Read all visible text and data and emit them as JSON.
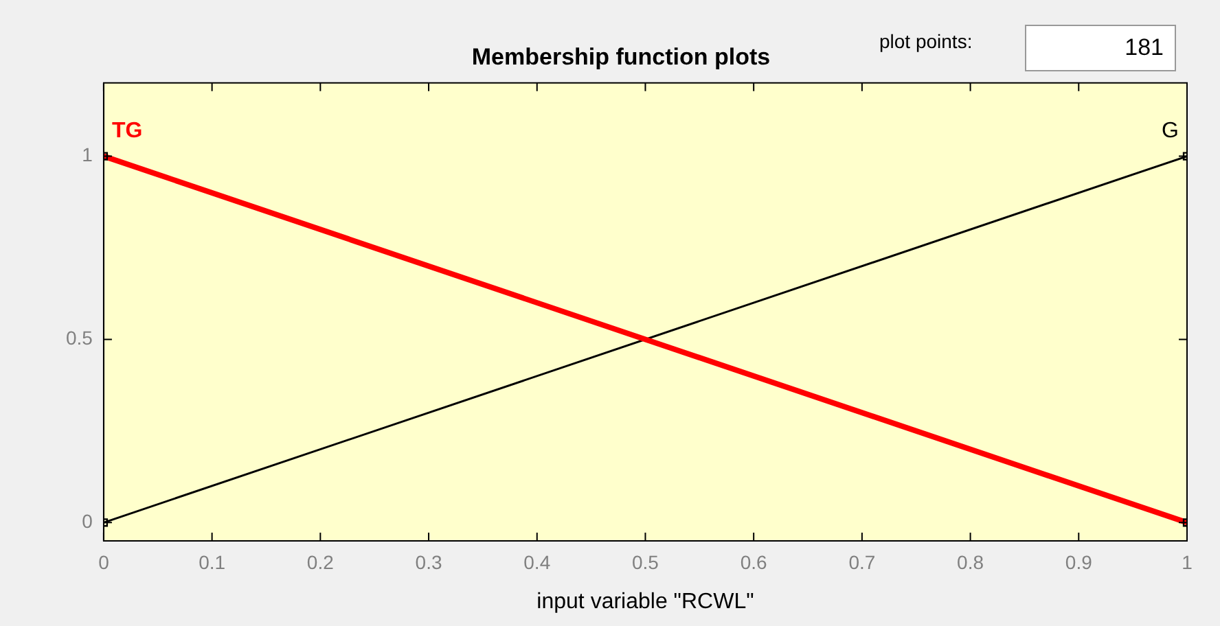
{
  "chart_data": {
    "type": "line",
    "title": "Membership function plots",
    "xlabel": "input variable \"RCWL\"",
    "annotations": [
      "plot points:",
      "181"
    ],
    "x": [
      0,
      1
    ],
    "series": [
      {
        "name": "TG",
        "color": "#ff0000",
        "values": [
          1,
          0
        ]
      },
      {
        "name": "G",
        "color": "#000000",
        "values": [
          0,
          1
        ]
      }
    ],
    "xlim": [
      0,
      1
    ],
    "xticks": [
      0,
      0.1,
      0.2,
      0.3,
      0.4,
      0.5,
      0.6,
      0.7,
      0.8,
      0.9,
      1
    ],
    "ylim": [
      -0.05,
      1.2
    ],
    "yticks": [
      0,
      0.5,
      1
    ],
    "grid": false,
    "legend": false,
    "marker": "square",
    "line_style": "solid"
  }
}
